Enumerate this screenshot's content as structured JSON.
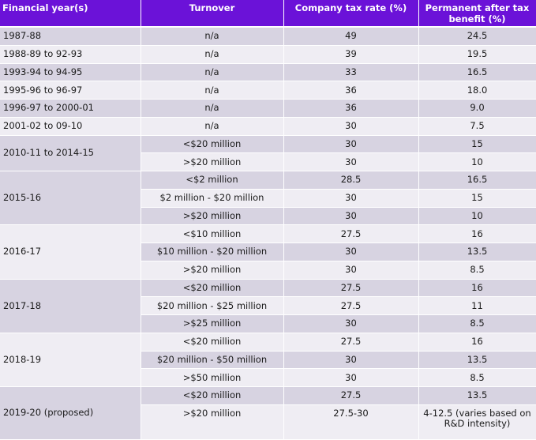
{
  "headers": {
    "year": "Financial year(s)",
    "turnover": "Turnover",
    "rate": "Company tax rate (%)",
    "benefit": "Permanent after tax benefit (%)"
  },
  "groups": [
    {
      "year": "1987-88",
      "rows": [
        {
          "turnover": "n/a",
          "rate": "49",
          "benefit": "24.5"
        }
      ]
    },
    {
      "year": "1988-89 to 92-93",
      "rows": [
        {
          "turnover": "n/a",
          "rate": "39",
          "benefit": "19.5"
        }
      ]
    },
    {
      "year": "1993-94 to 94-95",
      "rows": [
        {
          "turnover": "n/a",
          "rate": "33",
          "benefit": "16.5"
        }
      ]
    },
    {
      "year": "1995-96 to 96-97",
      "rows": [
        {
          "turnover": "n/a",
          "rate": "36",
          "benefit": "18.0"
        }
      ]
    },
    {
      "year": "1996-97 to 2000-01",
      "rows": [
        {
          "turnover": "n/a",
          "rate": "36",
          "benefit": "9.0"
        }
      ]
    },
    {
      "year": "2001-02 to 09-10",
      "rows": [
        {
          "turnover": "n/a",
          "rate": "30",
          "benefit": "7.5"
        }
      ]
    },
    {
      "year": "2010-11 to 2014-15",
      "rows": [
        {
          "turnover": "<$20 million",
          "rate": "30",
          "benefit": "15"
        },
        {
          "turnover": ">$20 million",
          "rate": "30",
          "benefit": "10"
        }
      ]
    },
    {
      "year": "2015-16",
      "rows": [
        {
          "turnover": "<$2 million",
          "rate": "28.5",
          "benefit": "16.5"
        },
        {
          "turnover": "$2 million - $20 million",
          "rate": "30",
          "benefit": "15"
        },
        {
          "turnover": ">$20 million",
          "rate": "30",
          "benefit": "10"
        }
      ]
    },
    {
      "year": "2016-17",
      "rows": [
        {
          "turnover": "<$10 million",
          "rate": "27.5",
          "benefit": "16"
        },
        {
          "turnover": "$10 million - $20 million",
          "rate": "30",
          "benefit": "13.5"
        },
        {
          "turnover": ">$20 million",
          "rate": "30",
          "benefit": "8.5"
        }
      ]
    },
    {
      "year": "2017-18",
      "rows": [
        {
          "turnover": "<$20 million",
          "rate": "27.5",
          "benefit": "16"
        },
        {
          "turnover": "$20 million - $25 million",
          "rate": "27.5",
          "benefit": "11"
        },
        {
          "turnover": ">$25 million",
          "rate": "30",
          "benefit": "8.5"
        }
      ]
    },
    {
      "year": "2018-19",
      "rows": [
        {
          "turnover": "<$20 million",
          "rate": "27.5",
          "benefit": "16"
        },
        {
          "turnover": "$20 million - $50 million",
          "rate": "30",
          "benefit": "13.5"
        },
        {
          "turnover": ">$50 million",
          "rate": "30",
          "benefit": "8.5"
        }
      ]
    },
    {
      "year": "2019-20 (proposed)",
      "rows": [
        {
          "turnover": "<$20 million",
          "rate": "27.5",
          "benefit": "13.5"
        },
        {
          "turnover": ">$20 million",
          "rate": "27.5-30",
          "benefit": "4-12.5 (varies based on R&D intensity)"
        }
      ]
    }
  ]
}
